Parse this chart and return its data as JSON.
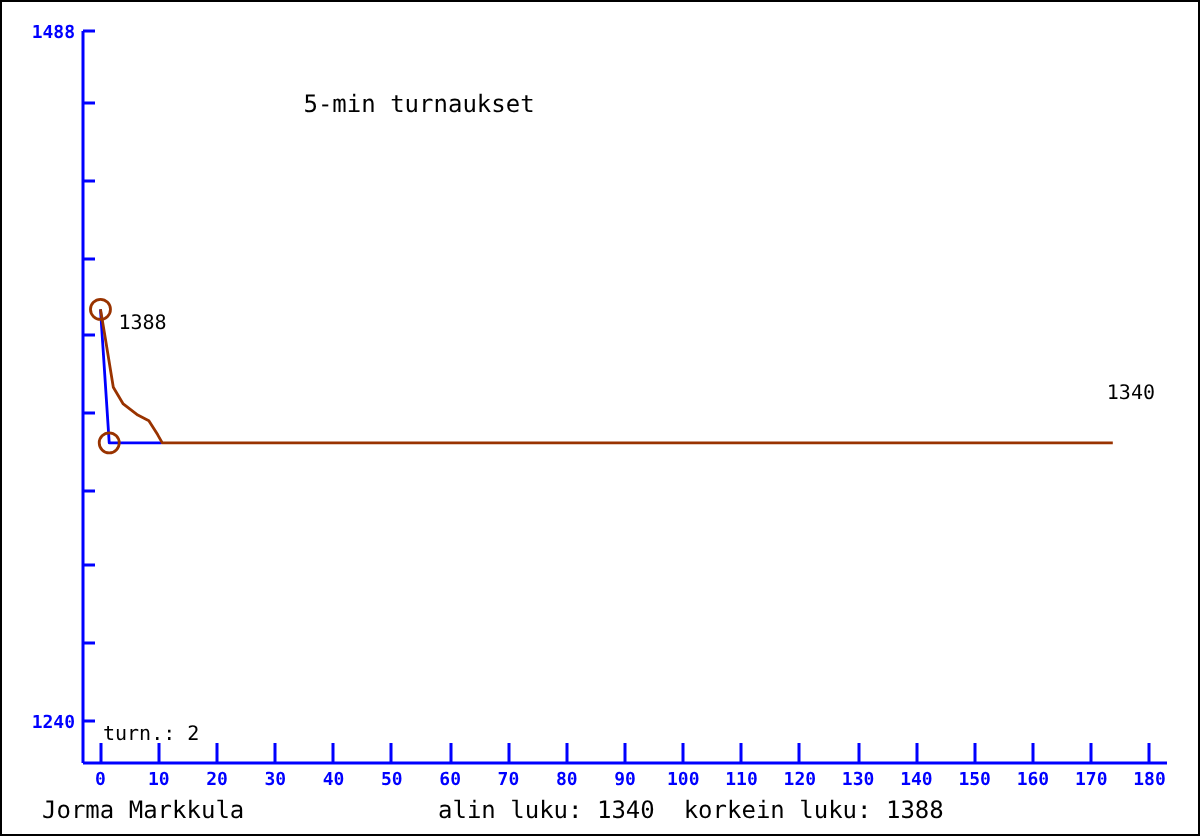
{
  "chart_data": {
    "type": "line",
    "title": "5-min turnaukset",
    "annotations": [
      "turn.: 2",
      "Jorma Markkula",
      "alin luku: 1340  korkein luku: 1388"
    ],
    "xlim": [
      -3,
      183
    ],
    "xticks": [
      0,
      10,
      20,
      30,
      40,
      50,
      60,
      70,
      80,
      90,
      100,
      110,
      120,
      130,
      140,
      150,
      160,
      170,
      180
    ],
    "ylim": [
      1225,
      1488
    ],
    "yticks": [
      1240,
      {
        "value": 1268,
        "label": null
      },
      {
        "value": 1296,
        "label": null
      },
      {
        "value": 1323,
        "label": null
      },
      {
        "value": 1351,
        "label": null
      },
      {
        "value": 1379,
        "label": null
      },
      {
        "value": 1406,
        "label": null
      },
      {
        "value": 1434,
        "label": null
      },
      {
        "value": 1462,
        "label": null
      },
      1488
    ],
    "grid": false,
    "series": [
      {
        "color": "#0000ff",
        "x": [
          0,
          1.5,
          10.5
        ],
        "values": [
          1388,
          1340,
          1340
        ]
      },
      {
        "color": "#993300",
        "x": [
          0,
          0.8,
          2.2,
          3.9,
          6.4,
          8.3,
          9.8,
          10.6,
          173.7
        ],
        "values": [
          1388,
          1378,
          1360,
          1354,
          1350,
          1348,
          1343,
          1340,
          1340
        ],
        "value_labels": [
          null,
          null,
          null,
          null,
          null,
          null,
          null,
          null,
          "1340"
        ]
      },
      {
        "type": "scatter",
        "color": "#993300",
        "marker": "circle",
        "x": [
          0,
          1.5
        ],
        "values": [
          1388,
          1340
        ],
        "value_labels": [
          "1388",
          null
        ]
      }
    ]
  }
}
